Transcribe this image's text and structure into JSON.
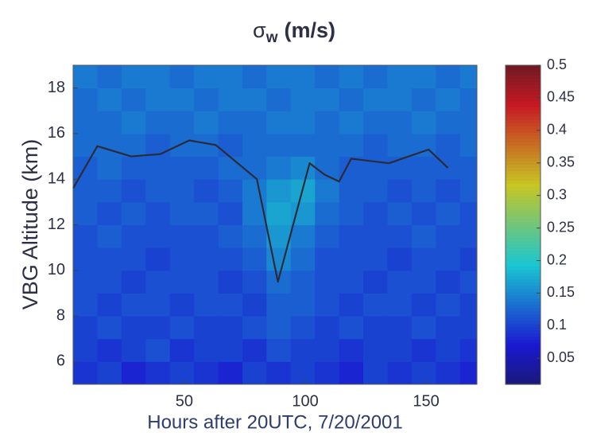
{
  "chart_data": {
    "type": "heatmap",
    "title_symbol": "σ",
    "title_subscript": "w",
    "title_unit": "(m/s)",
    "xlabel": "Hours after 20UTC, 7/20/2001",
    "ylabel": "VBG Altitude (km)",
    "xlim": [
      4,
      171
    ],
    "ylim": [
      5,
      19
    ],
    "xticks": [
      50,
      100,
      150
    ],
    "yticks": [
      6,
      8,
      10,
      12,
      14,
      16,
      18
    ],
    "xbins": [
      4,
      14,
      24,
      34,
      44,
      54,
      64,
      74,
      84,
      94,
      104,
      114,
      124,
      134,
      144,
      154,
      164,
      171
    ],
    "ybins": [
      5,
      6,
      7,
      8,
      9,
      10,
      11,
      12,
      13,
      14,
      15,
      16,
      17,
      18,
      19
    ],
    "colormap": "jet",
    "clim": [
      0.01,
      0.5
    ],
    "cticks": [
      0.05,
      0.1,
      0.15,
      0.2,
      0.25,
      0.3,
      0.35,
      0.4,
      0.45,
      0.5
    ],
    "z": [
      [
        0.09,
        0.1,
        0.08,
        0.09,
        0.1,
        0.09,
        0.08,
        0.1,
        0.09,
        0.1,
        0.09,
        0.08,
        0.1,
        0.09,
        0.1,
        0.09,
        0.08
      ],
      [
        0.1,
        0.09,
        0.1,
        0.11,
        0.09,
        0.1,
        0.1,
        0.09,
        0.11,
        0.1,
        0.1,
        0.09,
        0.1,
        0.1,
        0.09,
        0.1,
        0.09
      ],
      [
        0.1,
        0.11,
        0.1,
        0.1,
        0.11,
        0.1,
        0.1,
        0.11,
        0.12,
        0.11,
        0.1,
        0.11,
        0.1,
        0.1,
        0.11,
        0.1,
        0.1
      ],
      [
        0.11,
        0.1,
        0.11,
        0.11,
        0.1,
        0.11,
        0.11,
        0.1,
        0.12,
        0.12,
        0.11,
        0.1,
        0.11,
        0.11,
        0.1,
        0.11,
        0.1
      ],
      [
        0.11,
        0.11,
        0.1,
        0.11,
        0.11,
        0.11,
        0.1,
        0.11,
        0.13,
        0.12,
        0.11,
        0.11,
        0.1,
        0.11,
        0.11,
        0.1,
        0.11
      ],
      [
        0.11,
        0.11,
        0.11,
        0.1,
        0.11,
        0.11,
        0.11,
        0.12,
        0.15,
        0.13,
        0.11,
        0.11,
        0.11,
        0.1,
        0.11,
        0.11,
        0.1
      ],
      [
        0.11,
        0.12,
        0.11,
        0.11,
        0.11,
        0.11,
        0.12,
        0.13,
        0.16,
        0.14,
        0.12,
        0.11,
        0.11,
        0.11,
        0.12,
        0.11,
        0.11
      ],
      [
        0.12,
        0.11,
        0.12,
        0.11,
        0.12,
        0.12,
        0.11,
        0.14,
        0.17,
        0.16,
        0.13,
        0.12,
        0.11,
        0.12,
        0.11,
        0.12,
        0.11
      ],
      [
        0.12,
        0.12,
        0.11,
        0.12,
        0.12,
        0.11,
        0.12,
        0.14,
        0.16,
        0.17,
        0.14,
        0.12,
        0.12,
        0.11,
        0.12,
        0.11,
        0.12
      ],
      [
        0.12,
        0.13,
        0.12,
        0.12,
        0.12,
        0.12,
        0.13,
        0.13,
        0.14,
        0.15,
        0.13,
        0.12,
        0.12,
        0.12,
        0.12,
        0.12,
        0.12
      ],
      [
        0.13,
        0.13,
        0.13,
        0.12,
        0.13,
        0.13,
        0.12,
        0.13,
        0.13,
        0.13,
        0.13,
        0.13,
        0.12,
        0.13,
        0.13,
        0.12,
        0.13
      ],
      [
        0.13,
        0.13,
        0.14,
        0.13,
        0.13,
        0.14,
        0.13,
        0.13,
        0.14,
        0.14,
        0.13,
        0.14,
        0.13,
        0.13,
        0.14,
        0.13,
        0.13
      ],
      [
        0.13,
        0.14,
        0.13,
        0.14,
        0.14,
        0.13,
        0.14,
        0.14,
        0.13,
        0.14,
        0.14,
        0.13,
        0.14,
        0.14,
        0.13,
        0.14,
        0.13
      ],
      [
        0.14,
        0.13,
        0.14,
        0.14,
        0.13,
        0.14,
        0.14,
        0.13,
        0.14,
        0.14,
        0.13,
        0.14,
        0.13,
        0.14,
        0.14,
        0.13,
        0.14
      ]
    ],
    "series": [
      {
        "color": "#2b2b3a",
        "x": [
          4,
          14,
          28,
          40,
          52,
          63,
          80,
          88.7,
          101.8,
          108,
          114,
          119,
          134.6,
          151,
          159
        ],
        "values": [
          13.6,
          15.45,
          15.0,
          15.1,
          15.7,
          15.5,
          14.0,
          9.5,
          14.7,
          14.2,
          13.9,
          14.9,
          14.7,
          15.3,
          14.5
        ]
      }
    ]
  }
}
